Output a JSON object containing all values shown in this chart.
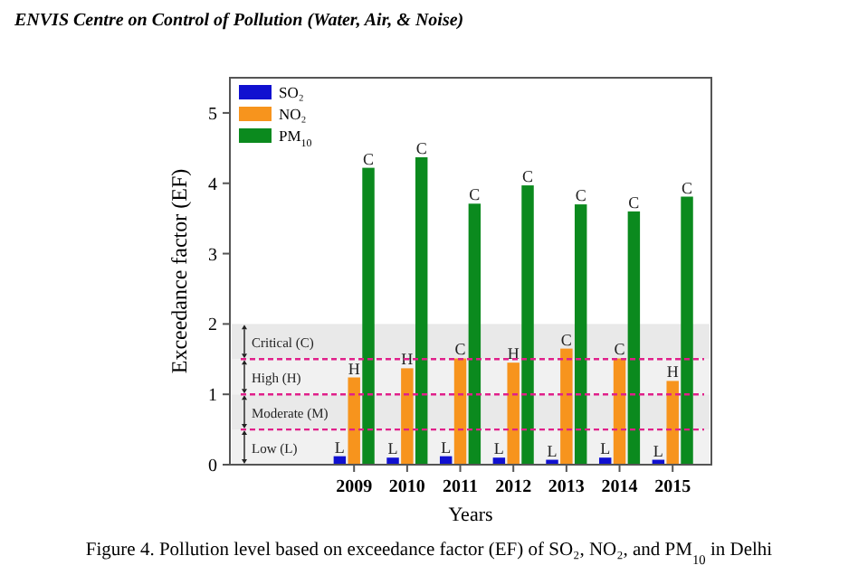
{
  "chart_data": {
    "type": "bar",
    "title": "ENVIS Centre on Control of Pollution (Water, Air, & Noise)",
    "xlabel": "Years",
    "ylabel": "Exceedance factor (EF)",
    "categories": [
      "2009",
      "2010",
      "2011",
      "2012",
      "2013",
      "2014",
      "2015"
    ],
    "series": [
      {
        "name": "SO₂",
        "color": "#1010d0",
        "values": [
          0.12,
          0.1,
          0.12,
          0.1,
          0.07,
          0.1,
          0.07
        ],
        "value_labels": [
          "L",
          "L",
          "L",
          "L",
          "L",
          "L",
          "L"
        ]
      },
      {
        "name": "NO₂",
        "color": "#f7941d",
        "values": [
          1.24,
          1.37,
          1.51,
          1.45,
          1.65,
          1.51,
          1.19
        ],
        "value_labels": [
          "H",
          "H",
          "C",
          "H",
          "C",
          "C",
          "H"
        ]
      },
      {
        "name": "PM$_{10}$",
        "color": "#0b8a1e",
        "values": [
          4.22,
          4.37,
          3.71,
          3.97,
          3.7,
          3.6,
          3.81
        ],
        "value_labels": [
          "C",
          "C",
          "C",
          "C",
          "C",
          "C",
          "C"
        ]
      }
    ],
    "ylim": [
      0,
      5.5
    ],
    "yticks": [
      0,
      1,
      2,
      3,
      4,
      5
    ],
    "grid": false,
    "legend": "top left",
    "ref_lines": [
      {
        "axis": "y",
        "value": 0.5,
        "color": "#e0208a",
        "line_style": "dashed"
      },
      {
        "axis": "y",
        "value": 1,
        "color": "#e0208a",
        "line_style": "dashed"
      },
      {
        "axis": "y",
        "value": 1.5,
        "color": "#e0208a",
        "line_style": "dashed"
      }
    ],
    "bands": [
      {
        "axis": "y",
        "from": 0,
        "to": 0.5,
        "label": "Low (L)"
      },
      {
        "axis": "y",
        "from": 0.5,
        "to": 1,
        "label": "Moderate (M)"
      },
      {
        "axis": "y",
        "from": 1,
        "to": 1.5,
        "label": "High (H)"
      },
      {
        "axis": "y",
        "from": 1.5,
        "to": 2,
        "label": "Critical (C)"
      }
    ],
    "annotations": [
      "Figure 4. Pollution level based on exceedance factor (EF) of SO₂, NO₂, and PM$_{10}$ in Delhi"
    ]
  }
}
